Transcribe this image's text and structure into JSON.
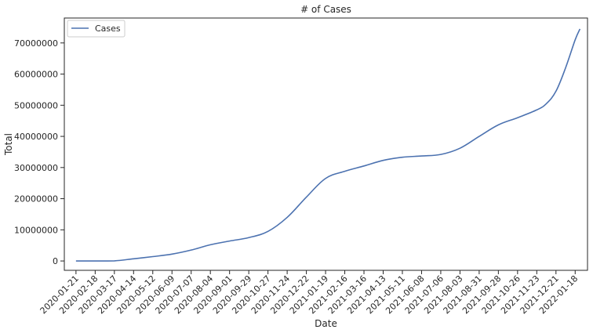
{
  "chart_data": {
    "type": "line",
    "title": "# of Cases",
    "xlabel": "Date",
    "ylabel": "Total",
    "x_ticks": [
      "2020-01-21",
      "2020-02-18",
      "2020-03-17",
      "2020-04-14",
      "2020-05-12",
      "2020-06-09",
      "2020-07-07",
      "2020-08-04",
      "2020-09-01",
      "2020-09-29",
      "2020-10-27",
      "2020-11-24",
      "2020-12-22",
      "2021-01-19",
      "2021-02-16",
      "2021-03-16",
      "2021-04-13",
      "2021-05-11",
      "2021-06-08",
      "2021-07-06",
      "2021-08-03",
      "2021-08-31",
      "2021-09-28",
      "2021-10-26",
      "2021-11-23",
      "2021-12-21",
      "2022-01-18"
    ],
    "y_ticks": [
      0,
      10000000,
      20000000,
      30000000,
      40000000,
      50000000,
      60000000,
      70000000
    ],
    "y_tick_labels": [
      "0",
      "10000000",
      "20000000",
      "30000000",
      "40000000",
      "50000000",
      "60000000",
      "70000000"
    ],
    "xlim": [
      "2020-01-04",
      "2022-02-05"
    ],
    "ylim": [
      -3000000,
      78000000
    ],
    "grid": false,
    "legend_position": "top-left",
    "series": [
      {
        "name": "Cases",
        "color": "#4c72b0",
        "x": [
          "2020-01-21",
          "2020-02-18",
          "2020-03-17",
          "2020-04-14",
          "2020-05-12",
          "2020-06-09",
          "2020-07-07",
          "2020-08-04",
          "2020-09-01",
          "2020-09-29",
          "2020-10-27",
          "2020-11-24",
          "2020-12-22",
          "2021-01-19",
          "2021-02-16",
          "2021-03-16",
          "2021-04-13",
          "2021-05-11",
          "2021-06-08",
          "2021-07-06",
          "2021-08-03",
          "2021-08-31",
          "2021-09-28",
          "2021-10-26",
          "2021-11-23",
          "2021-12-07",
          "2021-12-21",
          "2022-01-04",
          "2022-01-18",
          "2022-01-25"
        ],
        "y": [
          0,
          15,
          40000,
          700000,
          1400000,
          2200000,
          3500000,
          5200000,
          6400000,
          7500000,
          9500000,
          14000000,
          20500000,
          26500000,
          28800000,
          30500000,
          32300000,
          33300000,
          33700000,
          34200000,
          36200000,
          40000000,
          43700000,
          46000000,
          48500000,
          50500000,
          54500000,
          62000000,
          71000000,
          74500000
        ]
      }
    ]
  }
}
